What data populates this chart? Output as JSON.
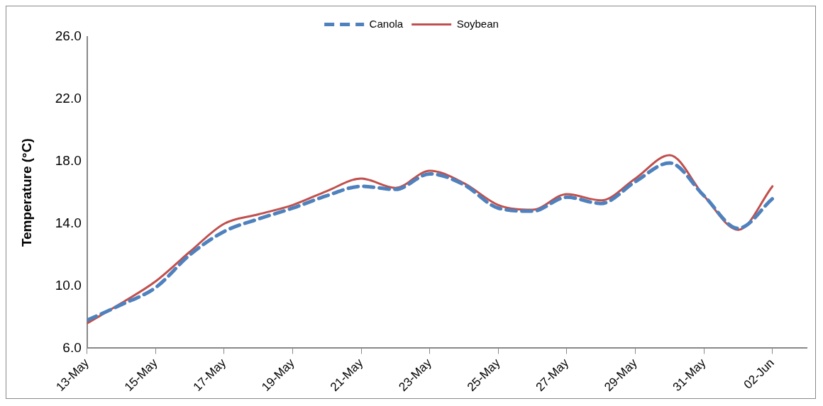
{
  "chart_data": {
    "type": "line",
    "ylabel": "Temperature (°C)",
    "x": [
      "--05-13",
      "--05-14",
      "--05-15",
      "--05-16",
      "--05-17",
      "--05-18",
      "--05-19",
      "--05-20",
      "--05-21",
      "--05-22",
      "--05-23",
      "--05-24",
      "--05-25",
      "--05-26",
      "--05-27",
      "--05-28",
      "--05-29",
      "--05-30",
      "--05-31",
      "--06-01",
      "--06-02"
    ],
    "series": [
      {
        "name": "Canola",
        "color": "#4f81bd",
        "line_style": "dashed",
        "values": [
          7.8,
          8.8,
          9.9,
          12.0,
          13.5,
          14.3,
          15.0,
          15.8,
          16.4,
          16.2,
          17.2,
          16.5,
          15.0,
          14.8,
          15.7,
          15.3,
          16.7,
          17.9,
          15.8,
          13.7,
          15.6
        ]
      },
      {
        "name": "Soybean",
        "color": "#c0504d",
        "line_style": "solid",
        "values": [
          7.6,
          8.9,
          10.3,
          12.2,
          14.0,
          14.6,
          15.2,
          16.1,
          16.9,
          16.3,
          17.4,
          16.6,
          15.2,
          14.9,
          15.9,
          15.5,
          16.9,
          18.4,
          15.8,
          13.6,
          16.4
        ]
      }
    ],
    "xlim": [
      "--05-13",
      "--06-03"
    ],
    "xticks": [
      {
        "value": "--05-13",
        "label": "13-May"
      },
      {
        "value": "--05-15",
        "label": "15-May"
      },
      {
        "value": "--05-17",
        "label": "17-May"
      },
      {
        "value": "--05-19",
        "label": "19-May"
      },
      {
        "value": "--05-21",
        "label": "21-May"
      },
      {
        "value": "--05-23",
        "label": "23-May"
      },
      {
        "value": "--05-25",
        "label": "25-May"
      },
      {
        "value": "--05-27",
        "label": "27-May"
      },
      {
        "value": "--05-29",
        "label": "29-May"
      },
      {
        "value": "--05-31",
        "label": "31-May"
      },
      {
        "value": "--06-02",
        "label": "02-Jun"
      }
    ],
    "ylim": [
      6,
      26
    ],
    "yticks": [
      {
        "value": 6,
        "label": "6.0"
      },
      {
        "value": 10,
        "label": "10.0"
      },
      {
        "value": 14,
        "label": "14.0"
      },
      {
        "value": 18,
        "label": "18.0"
      },
      {
        "value": 22,
        "label": "22.0"
      },
      {
        "value": 26,
        "label": "26.0"
      }
    ],
    "grid": false,
    "legend": "top",
    "marker": "none"
  }
}
